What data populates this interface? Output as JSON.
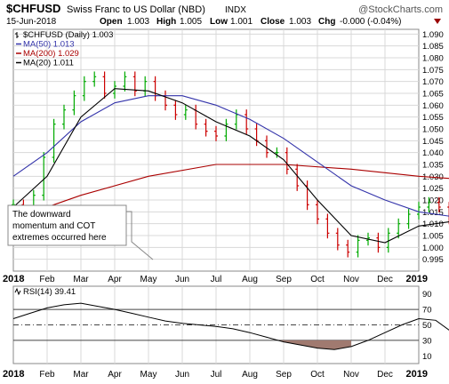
{
  "header": {
    "symbol": "$CHFUSD",
    "name": "Swiss Franc to US Dollar (NBD)",
    "exchange": "INDX",
    "brand": "@StockCharts.com",
    "date": "15-Jun-2018",
    "open_label": "Open",
    "open": "1.003",
    "high_label": "High",
    "high": "1.005",
    "low_label": "Low",
    "low": "1.001",
    "close_label": "Close",
    "close": "1.003",
    "chg_label": "Chg",
    "chg": "-0.000 (-0.04%)"
  },
  "colors": {
    "price_up": "#00aa00",
    "price_down": "#cc0000",
    "ma50": "#3333aa",
    "ma200": "#aa0000",
    "ma20": "#000000",
    "rsi_line": "#000000",
    "rsi_fill": "#a07a70",
    "grid": "#d8d8d8",
    "chg_arrow": "#990000"
  },
  "annotation": {
    "lines": [
      "The downward",
      "momentum and COT",
      "extremes occurred here"
    ]
  },
  "chart_data": [
    {
      "type": "ohlc",
      "legend": [
        {
          "label": "$CHFUSD (Daily) 1.003",
          "color": "#000000",
          "icon": "ohlc-bar-icon"
        },
        {
          "label": "MA(50) 1.013",
          "color": "#3333aa"
        },
        {
          "label": "MA(200) 1.029",
          "color": "#aa0000"
        },
        {
          "label": "MA(20) 1.011",
          "color": "#000000"
        }
      ],
      "legend_position": "top-left",
      "x_ticks": [
        "2018",
        "Feb",
        "Mar",
        "Apr",
        "May",
        "Jun",
        "Jul",
        "Aug",
        "Sep",
        "Oct",
        "Nov",
        "Dec",
        "2019"
      ],
      "y_ticks": [
        "1.090",
        "1.085",
        "1.080",
        "1.075",
        "1.070",
        "1.065",
        "1.060",
        "1.055",
        "1.050",
        "1.045",
        "1.040",
        "1.035",
        "1.030",
        "1.025",
        "1.020",
        "1.015",
        "1.010",
        "1.005",
        "1.000",
        "0.995"
      ],
      "ylim": [
        0.99,
        1.092
      ],
      "y_axis_side": "right",
      "grid": true,
      "price_close": [
        [
          0,
          1.018
        ],
        [
          0.3,
          1.014
        ],
        [
          0.6,
          1.022
        ],
        [
          0.9,
          1.038
        ],
        [
          1.2,
          1.052
        ],
        [
          1.5,
          1.058
        ],
        [
          1.8,
          1.064
        ],
        [
          2.1,
          1.07
        ],
        [
          2.4,
          1.072
        ],
        [
          2.7,
          1.065
        ],
        [
          3.0,
          1.068
        ],
        [
          3.3,
          1.072
        ],
        [
          3.6,
          1.066
        ],
        [
          3.9,
          1.07
        ],
        [
          4.2,
          1.064
        ],
        [
          4.5,
          1.06
        ],
        [
          4.8,
          1.056
        ],
        [
          5.1,
          1.058
        ],
        [
          5.4,
          1.052
        ],
        [
          5.7,
          1.049
        ],
        [
          6.0,
          1.047
        ],
        [
          6.3,
          1.052
        ],
        [
          6.6,
          1.056
        ],
        [
          6.9,
          1.05
        ],
        [
          7.2,
          1.045
        ],
        [
          7.5,
          1.04
        ],
        [
          7.8,
          1.04
        ],
        [
          8.1,
          1.033
        ],
        [
          8.4,
          1.026
        ],
        [
          8.7,
          1.018
        ],
        [
          9.0,
          1.012
        ],
        [
          9.3,
          1.006
        ],
        [
          9.6,
          1.001
        ],
        [
          9.9,
          0.998
        ],
        [
          10.2,
          1.003
        ],
        [
          10.5,
          1.004
        ],
        [
          10.8,
          1.0
        ],
        [
          11.1,
          1.006
        ],
        [
          11.4,
          1.01
        ],
        [
          11.7,
          1.014
        ],
        [
          12.0,
          1.017
        ],
        [
          12.3,
          1.019
        ],
        [
          12.6,
          1.017
        ],
        [
          12.9,
          1.012
        ],
        [
          13.1,
          1.003
        ]
      ],
      "ma50": [
        [
          0,
          1.03
        ],
        [
          1,
          1.04
        ],
        [
          2,
          1.053
        ],
        [
          3,
          1.061
        ],
        [
          4,
          1.064
        ],
        [
          5,
          1.064
        ],
        [
          6,
          1.06
        ],
        [
          7,
          1.054
        ],
        [
          8,
          1.046
        ],
        [
          9,
          1.036
        ],
        [
          10,
          1.026
        ],
        [
          11,
          1.02
        ],
        [
          12,
          1.015
        ],
        [
          13,
          1.013
        ]
      ],
      "ma200": [
        [
          0,
          1.012
        ],
        [
          2,
          1.022
        ],
        [
          4,
          1.03
        ],
        [
          6,
          1.035
        ],
        [
          8,
          1.035
        ],
        [
          10,
          1.033
        ],
        [
          12,
          1.03
        ],
        [
          13,
          1.029
        ]
      ],
      "ma20": [
        [
          0,
          1.017
        ],
        [
          1,
          1.03
        ],
        [
          2,
          1.055
        ],
        [
          3,
          1.067
        ],
        [
          4,
          1.066
        ],
        [
          5,
          1.061
        ],
        [
          6,
          1.053
        ],
        [
          7,
          1.047
        ],
        [
          8,
          1.037
        ],
        [
          9,
          1.02
        ],
        [
          10,
          1.005
        ],
        [
          11,
          1.002
        ],
        [
          12,
          1.009
        ],
        [
          13,
          1.011
        ]
      ]
    },
    {
      "type": "line",
      "legend": [
        {
          "label": "RSI(14) 39.41",
          "color": "#000000",
          "icon": "rsi-line-icon"
        }
      ],
      "x_ticks": [
        "2018",
        "Feb",
        "Mar",
        "Apr",
        "May",
        "Jun",
        "Jul",
        "Aug",
        "Sep",
        "Oct",
        "Nov",
        "Dec",
        "2019"
      ],
      "y_ticks": [
        "90",
        "70",
        "50",
        "30",
        "10"
      ],
      "ylim": [
        0,
        100
      ],
      "reference_lines": [
        70,
        50,
        30
      ],
      "y_axis_side": "right",
      "rsi": [
        [
          0,
          58
        ],
        [
          0.5,
          65
        ],
        [
          1.0,
          72
        ],
        [
          1.5,
          76
        ],
        [
          2.0,
          78
        ],
        [
          2.5,
          74
        ],
        [
          3.0,
          70
        ],
        [
          3.5,
          65
        ],
        [
          4.0,
          60
        ],
        [
          4.5,
          55
        ],
        [
          5.0,
          52
        ],
        [
          5.5,
          50
        ],
        [
          6.0,
          48
        ],
        [
          6.5,
          45
        ],
        [
          7.0,
          40
        ],
        [
          7.5,
          34
        ],
        [
          8.0,
          28
        ],
        [
          8.5,
          24
        ],
        [
          9.0,
          20
        ],
        [
          9.5,
          18
        ],
        [
          10.0,
          22
        ],
        [
          10.5,
          30
        ],
        [
          11.0,
          40
        ],
        [
          11.5,
          50
        ],
        [
          12.0,
          58
        ],
        [
          12.5,
          56
        ],
        [
          13.0,
          40
        ],
        [
          13.1,
          39.41
        ]
      ],
      "fill_below": 30
    }
  ]
}
